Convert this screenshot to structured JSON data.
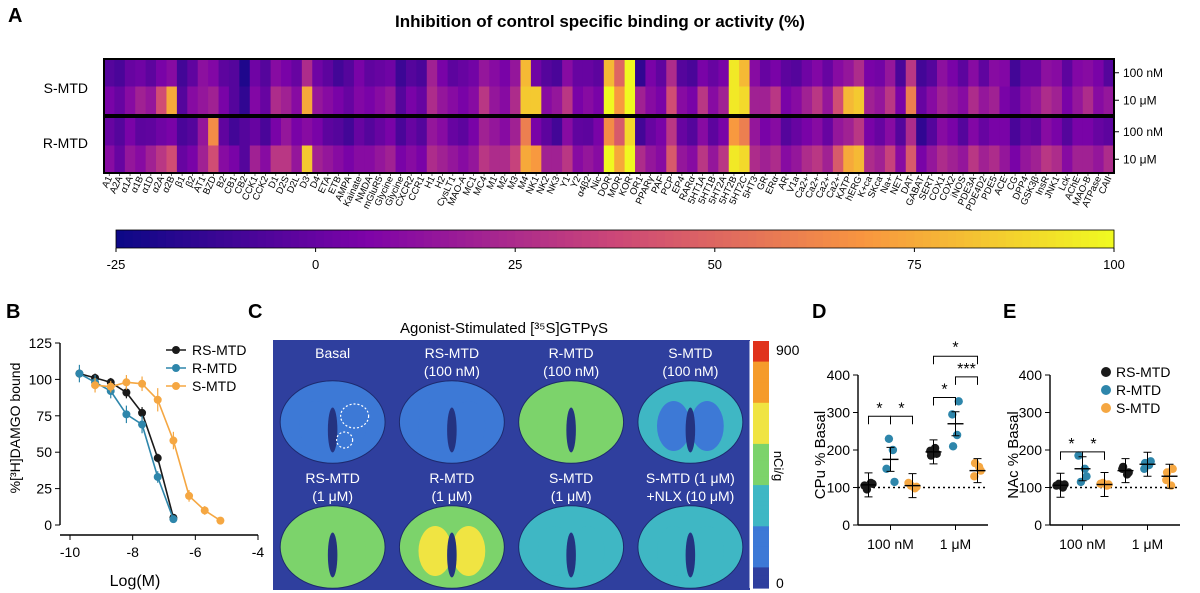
{
  "panels": {
    "A": "A",
    "B": "B",
    "C": "C",
    "D": "D",
    "E": "E"
  },
  "colors": {
    "rs": "#1a1a1a",
    "r": "#2e86ab",
    "s": "#f5a742",
    "frame": "#000000"
  },
  "chart_data": [
    {
      "type": "heatmap",
      "panel": "A",
      "title": "Inhibition of control specific binding or activity (%)",
      "row_groups": [
        "S-MTD",
        "R-MTD"
      ],
      "row_conc": [
        "100 nM",
        "10 μM",
        "100 nM",
        "10 μM"
      ],
      "colorbar": {
        "ticks": [
          "-25",
          "0",
          "25",
          "50",
          "75",
          "100"
        ],
        "range": [
          -25,
          100
        ]
      },
      "targets": [
        "A1",
        "A2A",
        "α1A",
        "α1B",
        "α1D",
        "α2A",
        "α2B",
        "β1",
        "β2",
        "AT1",
        "BZD",
        "B2",
        "CB1",
        "CB2",
        "CCK1",
        "CCK2",
        "D1",
        "D2S",
        "D2L",
        "D3",
        "D4",
        "ETA",
        "ETB",
        "AMPA",
        "Kainate",
        "NMDA",
        "mGluR5",
        "Glycine",
        "Glycine",
        "CXCR2",
        "CCR1",
        "H1",
        "H2",
        "CysLT1",
        "MAO-A",
        "MC1",
        "MC4",
        "M1",
        "M2",
        "M3",
        "M4",
        "NK1",
        "NK2",
        "NK3",
        "Y1",
        "Y2",
        "α4β2",
        "Nic",
        "DOR",
        "MOR",
        "KOR",
        "OR1",
        "PPARγ",
        "PAF",
        "PCP",
        "EP4",
        "RARα",
        "5HT1A",
        "5HT1B",
        "5HT2A",
        "5HT2B",
        "5HT2C",
        "5HT3",
        "GR",
        "ERα",
        "AR",
        "V1a",
        "Ca2+",
        "Ca2+",
        "Ca2+",
        "Ca2+",
        "KATP",
        "hERG",
        "K+ca",
        "SKca",
        "Na+",
        "NET",
        "DAT",
        "GABAT",
        "SERT",
        "COX1",
        "COX2",
        "iNOS",
        "PDE3A",
        "PDE4D2",
        "PDE5",
        "ACE",
        "CG",
        "DPP4",
        "GSK3β",
        "InsR",
        "JNK1",
        "Lck",
        "AChE",
        "MAO-B",
        "ATPase",
        "CAII"
      ],
      "values": [
        [
          -5,
          -8,
          0,
          2,
          -3,
          5,
          10,
          -10,
          -2,
          12,
          8,
          -3,
          -5,
          -20,
          2,
          -5,
          10,
          5,
          0,
          25,
          2,
          -3,
          -10,
          -5,
          5,
          -2,
          0,
          2,
          -12,
          -5,
          -8,
          20,
          5,
          -3,
          0,
          3,
          15,
          10,
          5,
          15,
          80,
          2,
          -5,
          -8,
          10,
          0,
          0,
          -3,
          80,
          50,
          100,
          -15,
          5,
          -2,
          25,
          -5,
          -8,
          5,
          0,
          5,
          95,
          80,
          10,
          0,
          5,
          -3,
          -5,
          2,
          8,
          0,
          10,
          15,
          25,
          5,
          3,
          15,
          -8,
          30,
          -10,
          -5,
          12,
          5,
          -3,
          10,
          -2,
          10,
          8,
          -10,
          0,
          0,
          12,
          10,
          -3,
          8,
          10,
          5,
          -5
        ],
        [
          5,
          0,
          10,
          20,
          15,
          40,
          75,
          -5,
          10,
          15,
          20,
          5,
          -5,
          -15,
          8,
          0,
          25,
          20,
          10,
          75,
          15,
          10,
          5,
          0,
          8,
          5,
          10,
          15,
          -5,
          5,
          0,
          25,
          15,
          10,
          5,
          10,
          30,
          15,
          10,
          25,
          85,
          85,
          10,
          15,
          30,
          5,
          10,
          5,
          100,
          70,
          100,
          20,
          10,
          5,
          40,
          10,
          5,
          30,
          10,
          20,
          95,
          90,
          20,
          20,
          30,
          5,
          10,
          20,
          30,
          15,
          40,
          80,
          85,
          20,
          15,
          30,
          5,
          60,
          0,
          10,
          20,
          15,
          10,
          25,
          15,
          20,
          5,
          0,
          10,
          15,
          25,
          20,
          5,
          15,
          25,
          10,
          15
        ],
        [
          0,
          -5,
          5,
          -3,
          -2,
          2,
          5,
          -8,
          -5,
          15,
          65,
          -2,
          -10,
          -5,
          0,
          -8,
          5,
          15,
          5,
          10,
          5,
          -3,
          -5,
          -10,
          0,
          -5,
          0,
          5,
          -8,
          0,
          -5,
          15,
          10,
          0,
          -3,
          5,
          20,
          15,
          10,
          20,
          60,
          5,
          -3,
          -10,
          10,
          -2,
          -3,
          5,
          65,
          45,
          90,
          -10,
          0,
          5,
          30,
          0,
          -5,
          10,
          -3,
          5,
          70,
          60,
          15,
          5,
          10,
          -5,
          0,
          5,
          10,
          0,
          15,
          20,
          30,
          5,
          0,
          10,
          -5,
          25,
          -15,
          -5,
          10,
          5,
          -5,
          8,
          0,
          5,
          5,
          -8,
          0,
          -3,
          10,
          5,
          -5,
          5,
          5,
          0,
          -3
        ],
        [
          10,
          0,
          15,
          10,
          20,
          30,
          40,
          0,
          5,
          20,
          40,
          10,
          5,
          -5,
          20,
          10,
          30,
          30,
          15,
          85,
          20,
          15,
          10,
          5,
          10,
          10,
          15,
          20,
          5,
          10,
          5,
          25,
          20,
          15,
          10,
          15,
          30,
          25,
          25,
          35,
          75,
          70,
          20,
          20,
          30,
          10,
          15,
          10,
          100,
          75,
          100,
          25,
          15,
          10,
          45,
          15,
          10,
          30,
          15,
          30,
          95,
          90,
          25,
          20,
          25,
          10,
          15,
          25,
          30,
          20,
          45,
          75,
          80,
          25,
          20,
          35,
          10,
          45,
          5,
          15,
          25,
          20,
          15,
          30,
          20,
          25,
          15,
          5,
          15,
          20,
          30,
          25,
          10,
          20,
          20,
          15,
          25
        ]
      ]
    },
    {
      "type": "line",
      "panel": "B",
      "xlabel": "Log(M)",
      "ylabel": "%[³H]DAMGO bound",
      "xlim": [
        -10,
        -4
      ],
      "ylim": [
        0,
        125
      ],
      "xticks": [
        "-10",
        "-8",
        "-6",
        "-4"
      ],
      "yticks": [
        "0",
        "25",
        "50",
        "75",
        "100",
        "125"
      ],
      "series": [
        {
          "name": "RS-MTD",
          "x": [
            -9.7,
            -9.2,
            -8.7,
            -8.2,
            -7.7,
            -7.2,
            -6.7
          ],
          "y": [
            104,
            101,
            98,
            91,
            77,
            46,
            5
          ],
          "err": [
            3,
            3,
            3,
            4,
            4,
            3,
            2
          ]
        },
        {
          "name": "R-MTD",
          "x": [
            -9.7,
            -9.2,
            -8.7,
            -8.2,
            -7.7,
            -7.2,
            -6.7
          ],
          "y": [
            104,
            98,
            92,
            76,
            69,
            33,
            4
          ],
          "err": [
            6,
            5,
            5,
            6,
            6,
            4,
            2
          ]
        },
        {
          "name": "S-MTD",
          "x": [
            -9.2,
            -8.7,
            -8.2,
            -7.7,
            -7.2,
            -6.7,
            -6.2,
            -5.7,
            -5.2
          ],
          "y": [
            96,
            95,
            98,
            97,
            86,
            58,
            20,
            10,
            3
          ],
          "err": [
            5,
            4,
            5,
            5,
            8,
            6,
            4,
            3,
            2
          ]
        }
      ]
    },
    {
      "type": "scatter",
      "panel": "D",
      "ylabel": "CPu % Basal",
      "categories": [
        "100 nM",
        "1 μM"
      ],
      "ylim": [
        0,
        400
      ],
      "yticks": [
        "0",
        "100",
        "200",
        "300",
        "400"
      ],
      "series": [
        {
          "name": "RS-MTD",
          "points": [
            [
              0,
              105
            ],
            [
              0,
              112
            ],
            [
              0,
              95
            ],
            [
              0,
              110
            ],
            [
              1,
              190
            ],
            [
              1,
              198
            ],
            [
              1,
              205
            ],
            [
              1,
              185
            ]
          ],
          "mean": [
            107,
            195
          ]
        },
        {
          "name": "R-MTD",
          "points": [
            [
              0,
              150
            ],
            [
              0,
              200
            ],
            [
              0,
              230
            ],
            [
              0,
              115
            ],
            [
              1,
              330
            ],
            [
              1,
              295
            ],
            [
              1,
              240
            ],
            [
              1,
              210
            ]
          ],
          "mean": [
            175,
            270
          ]
        },
        {
          "name": "S-MTD",
          "points": [
            [
              0,
              112
            ],
            [
              0,
              98
            ],
            [
              0,
              105
            ],
            [
              0,
              102
            ],
            [
              1,
              145
            ],
            [
              1,
              130
            ],
            [
              1,
              155
            ],
            [
              1,
              165
            ]
          ],
          "mean": [
            105,
            145
          ]
        }
      ],
      "sig": [
        "*",
        "*",
        "*",
        "*",
        "***"
      ]
    },
    {
      "type": "scatter",
      "panel": "E",
      "ylabel": "NAc % Basal",
      "categories": [
        "100 nM",
        "1 μM"
      ],
      "ylim": [
        0,
        400
      ],
      "yticks": [
        "0",
        "100",
        "200",
        "300",
        "400"
      ],
      "series": [
        {
          "name": "RS-MTD",
          "points": [
            [
              0,
              105
            ],
            [
              0,
              100
            ],
            [
              0,
              110
            ],
            [
              0,
              108
            ],
            [
              1,
              140
            ],
            [
              1,
              150
            ],
            [
              1,
              135
            ],
            [
              1,
              155
            ]
          ],
          "mean": [
            106,
            145
          ]
        },
        {
          "name": "R-MTD",
          "points": [
            [
              0,
              185
            ],
            [
              0,
              150
            ],
            [
              0,
              115
            ],
            [
              0,
              130
            ],
            [
              1,
              170
            ],
            [
              1,
              150
            ],
            [
              1,
              160
            ],
            [
              1,
              165
            ]
          ],
          "mean": [
            150,
            162
          ]
        },
        {
          "name": "S-MTD",
          "points": [
            [
              0,
              110
            ],
            [
              0,
              105
            ],
            [
              0,
              112
            ],
            [
              0,
              108
            ],
            [
              1,
              150
            ],
            [
              1,
              120
            ],
            [
              1,
              105
            ],
            [
              1,
              140
            ]
          ],
          "mean": [
            108,
            130
          ]
        }
      ],
      "sig": [
        "*",
        "*"
      ]
    }
  ],
  "autorad": {
    "title": "Agonist-Stimulated [³⁵S]GTPγS",
    "cbar_top": "900",
    "cbar_bottom": "0",
    "cbar_unit": "nCi/g",
    "labels": [
      [
        "Basal",
        ""
      ],
      [
        "RS-MTD",
        "(100 nM)"
      ],
      [
        "R-MTD",
        "(100 nM)"
      ],
      [
        "S-MTD",
        "(100 nM)"
      ],
      [
        "RS-MTD",
        "(1 μM)"
      ],
      [
        "R-MTD",
        "(1 μM)"
      ],
      [
        "S-MTD",
        "(1 μM)"
      ],
      [
        "S-MTD (1 μM)",
        "+NLX (10 μM)"
      ]
    ],
    "intensity": [
      0.15,
      0.12,
      0.55,
      0.2,
      0.5,
      0.75,
      0.4,
      0.3
    ]
  }
}
